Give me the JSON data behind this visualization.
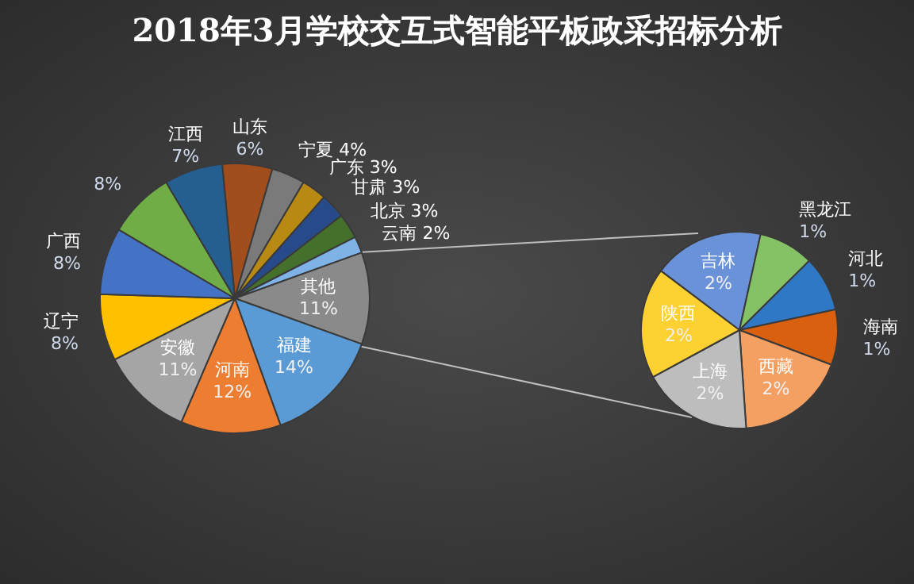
{
  "chart_data": [
    {
      "type": "pie",
      "title": "2018年3月学校交互式智能平板政采招标分析",
      "categories": [
        "山东",
        "宁夏",
        "广东",
        "甘肃",
        "北京",
        "云南",
        "其他",
        "福建",
        "河南",
        "安徽",
        "辽宁",
        "广西",
        null,
        "江西"
      ],
      "values": [
        6,
        4,
        3,
        3,
        3,
        2,
        11,
        14,
        12,
        11,
        8,
        8,
        8,
        7
      ],
      "value_labels": [
        "6%",
        "4%",
        "3%",
        "3%",
        "3%",
        "2%",
        "11%",
        "14%",
        "12%",
        "11%",
        "8%",
        "8%",
        "8%",
        "7%"
      ],
      "colors": [
        "#a24d1c",
        "#7a7a7a",
        "#b88a14",
        "#274a8a",
        "#44702c",
        "#7fb3e8",
        "#8a8a8a",
        "#5b9bd5",
        "#ed7d31",
        "#a5a5a5",
        "#ffc000",
        "#4472c4",
        "#70ad47",
        "#255e91"
      ]
    },
    {
      "type": "pie",
      "categories": [
        "吉林",
        "黑龙江",
        "河北",
        "海南",
        "西藏",
        "上海",
        "陕西"
      ],
      "values": [
        2,
        1,
        1,
        1,
        2,
        2,
        2
      ],
      "value_labels": [
        "2%",
        "1%",
        "1%",
        "1%",
        "2%",
        "2%",
        "2%"
      ],
      "colors": [
        "#6a92d8",
        "#85c265",
        "#2e78c6",
        "#d8600f",
        "#f5a063",
        "#bdbdbd",
        "#fdd131"
      ]
    }
  ]
}
